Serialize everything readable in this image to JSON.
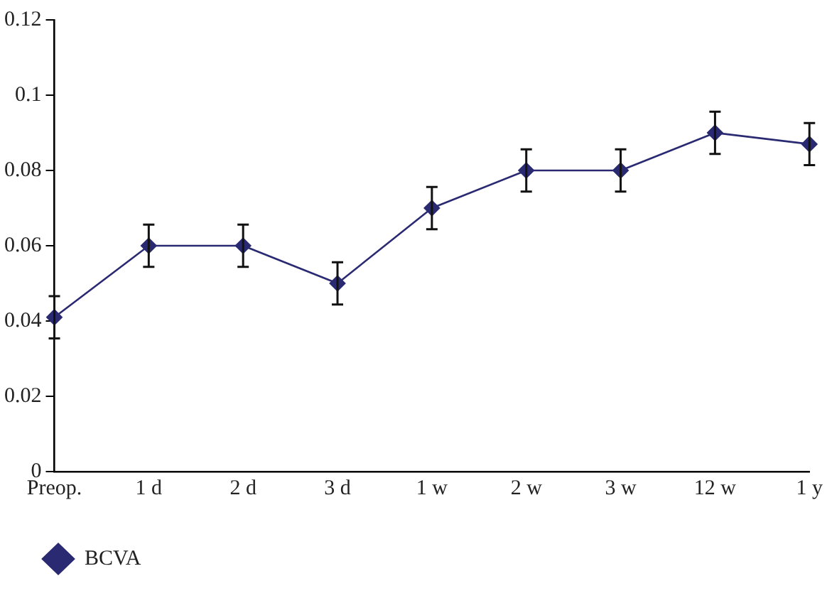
{
  "chart_data": {
    "type": "line",
    "categories": [
      "Preop.",
      "1 d",
      "2 d",
      "3 d",
      "1 w",
      "2 w",
      "3 w",
      "12 w",
      "1 y"
    ],
    "series": [
      {
        "name": "BCVA",
        "color": "#2a2a72",
        "values": [
          0.041,
          0.06,
          0.06,
          0.05,
          0.07,
          0.08,
          0.08,
          0.09,
          0.087
        ],
        "errors": [
          0.0056,
          0.0056,
          0.0056,
          0.0056,
          0.0056,
          0.0056,
          0.0056,
          0.0056,
          0.0056
        ]
      }
    ],
    "ylim": [
      0,
      0.12
    ],
    "yticks": [
      0,
      0.02,
      0.04,
      0.06,
      0.08,
      0.1,
      0.12
    ],
    "grid": false,
    "legend": "bottom left",
    "marker": "diamond",
    "line_style": "solid"
  }
}
